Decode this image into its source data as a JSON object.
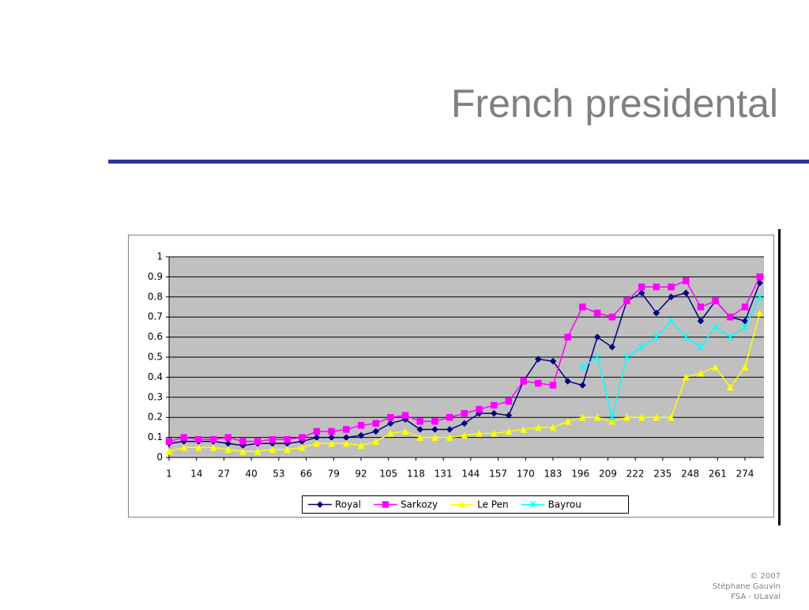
{
  "chart_data": {
    "type": "line",
    "title": "French presidental",
    "x": [
      1,
      8,
      15,
      22,
      29,
      36,
      43,
      50,
      57,
      64,
      71,
      78,
      85,
      92,
      99,
      106,
      113,
      120,
      127,
      134,
      141,
      148,
      155,
      162,
      169,
      176,
      183,
      190,
      197,
      204,
      211,
      218,
      225,
      232,
      239,
      246,
      253,
      260,
      267,
      274,
      281
    ],
    "series": [
      {
        "name": "Royal",
        "color": "#000080",
        "marker": "diamond",
        "values": [
          0.07,
          0.08,
          0.08,
          0.08,
          0.07,
          0.06,
          0.07,
          0.07,
          0.07,
          0.08,
          0.1,
          0.1,
          0.1,
          0.11,
          0.13,
          0.17,
          0.19,
          0.14,
          0.14,
          0.14,
          0.17,
          0.22,
          0.22,
          0.21,
          0.38,
          0.49,
          0.48,
          0.38,
          0.36,
          0.6,
          0.55,
          0.78,
          0.82,
          0.72,
          0.8,
          0.82,
          0.68,
          0.78,
          0.7,
          0.68,
          0.87
        ]
      },
      {
        "name": "Sarkozy",
        "color": "#ff00ff",
        "marker": "square",
        "values": [
          0.08,
          0.1,
          0.09,
          0.09,
          0.1,
          0.08,
          0.08,
          0.09,
          0.09,
          0.1,
          0.13,
          0.13,
          0.14,
          0.16,
          0.17,
          0.2,
          0.21,
          0.18,
          0.18,
          0.2,
          0.22,
          0.24,
          0.26,
          0.28,
          0.38,
          0.37,
          0.36,
          0.6,
          0.75,
          0.72,
          0.7,
          0.78,
          0.85,
          0.85,
          0.85,
          0.88,
          0.75,
          0.78,
          0.7,
          0.75,
          0.9
        ]
      },
      {
        "name": "Le Pen",
        "color": "#ffff00",
        "marker": "triangle",
        "values": [
          0.03,
          0.05,
          0.05,
          0.05,
          0.04,
          0.03,
          0.03,
          0.04,
          0.04,
          0.05,
          0.07,
          0.07,
          0.07,
          0.06,
          0.08,
          0.12,
          0.13,
          0.1,
          0.1,
          0.1,
          0.11,
          0.12,
          0.12,
          0.13,
          0.14,
          0.15,
          0.15,
          0.18,
          0.2,
          0.2,
          0.18,
          0.2,
          0.2,
          0.2,
          0.2,
          0.4,
          0.42,
          0.45,
          0.35,
          0.45,
          0.72
        ]
      },
      {
        "name": "Bayrou",
        "color": "#00ffff",
        "marker": "star",
        "values": [
          null,
          null,
          null,
          null,
          null,
          null,
          null,
          null,
          null,
          null,
          null,
          null,
          null,
          null,
          null,
          null,
          null,
          null,
          null,
          null,
          null,
          null,
          null,
          null,
          null,
          null,
          null,
          null,
          0.45,
          0.5,
          0.2,
          0.5,
          0.55,
          0.6,
          0.68,
          0.6,
          0.55,
          0.65,
          0.6,
          0.65,
          0.8
        ]
      }
    ],
    "xlim": [
      1,
      283
    ],
    "xticks": [
      1,
      14,
      27,
      40,
      53,
      66,
      79,
      92,
      105,
      118,
      131,
      144,
      157,
      170,
      183,
      196,
      209,
      222,
      235,
      248,
      261,
      274
    ],
    "ylim": [
      0,
      1
    ],
    "yticks": [
      0,
      0.1,
      0.2,
      0.3,
      0.4,
      0.5,
      0.6,
      0.7,
      0.8,
      0.9,
      1
    ],
    "grid": true,
    "legend": "bottom",
    "plot_background": "#c0c0c0"
  },
  "footer": [
    "© 2007",
    "Stéphane Gauvin",
    "FSA - ULaval"
  ]
}
